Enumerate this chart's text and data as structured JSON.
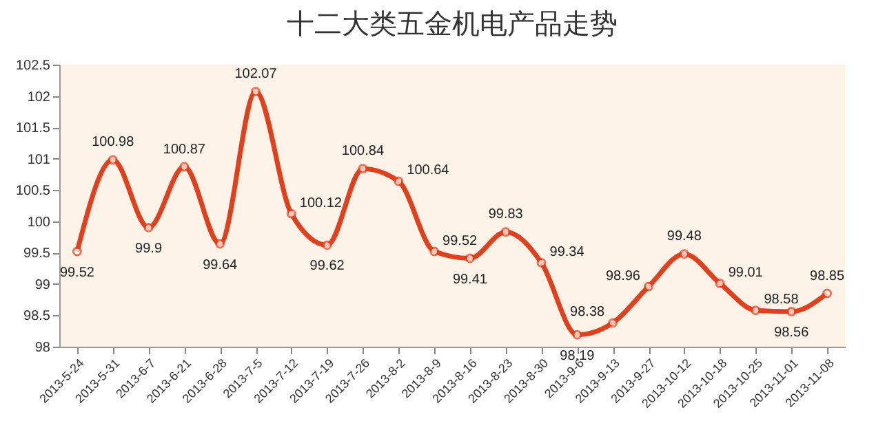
{
  "chart_data": {
    "type": "line",
    "title": "十二大类五金机电产品走势",
    "categories": [
      "2013-5-24",
      "2013-5-31",
      "2013-6-7",
      "2013-6-21",
      "2013-6-28",
      "2013-7-5",
      "2013-7-12",
      "2013-7-19",
      "2013-7-26",
      "2013-8-2",
      "2013-8-9",
      "2013-8-16",
      "2013-8-23",
      "2013-8-30",
      "2013-9-6",
      "2013-9-13",
      "2013-9-27",
      "2013-10-12",
      "2013-10-18",
      "2013-10-25",
      "2013-11-01",
      "2013-11-08"
    ],
    "series": [
      {
        "color": "#e2401c",
        "values": [
          99.52,
          100.98,
          99.9,
          100.87,
          99.64,
          102.07,
          100.12,
          99.62,
          100.84,
          100.64,
          99.52,
          99.41,
          99.83,
          99.34,
          98.19,
          98.38,
          98.96,
          99.48,
          99.01,
          98.58,
          98.56,
          98.85
        ]
      }
    ],
    "ylim": [
      98,
      102.5
    ],
    "yticks": [
      98,
      98.5,
      99,
      99.5,
      100,
      100.5,
      101,
      101.5,
      102,
      102.5
    ],
    "data_labels": true,
    "marker": "circle",
    "line_style": "solid"
  }
}
